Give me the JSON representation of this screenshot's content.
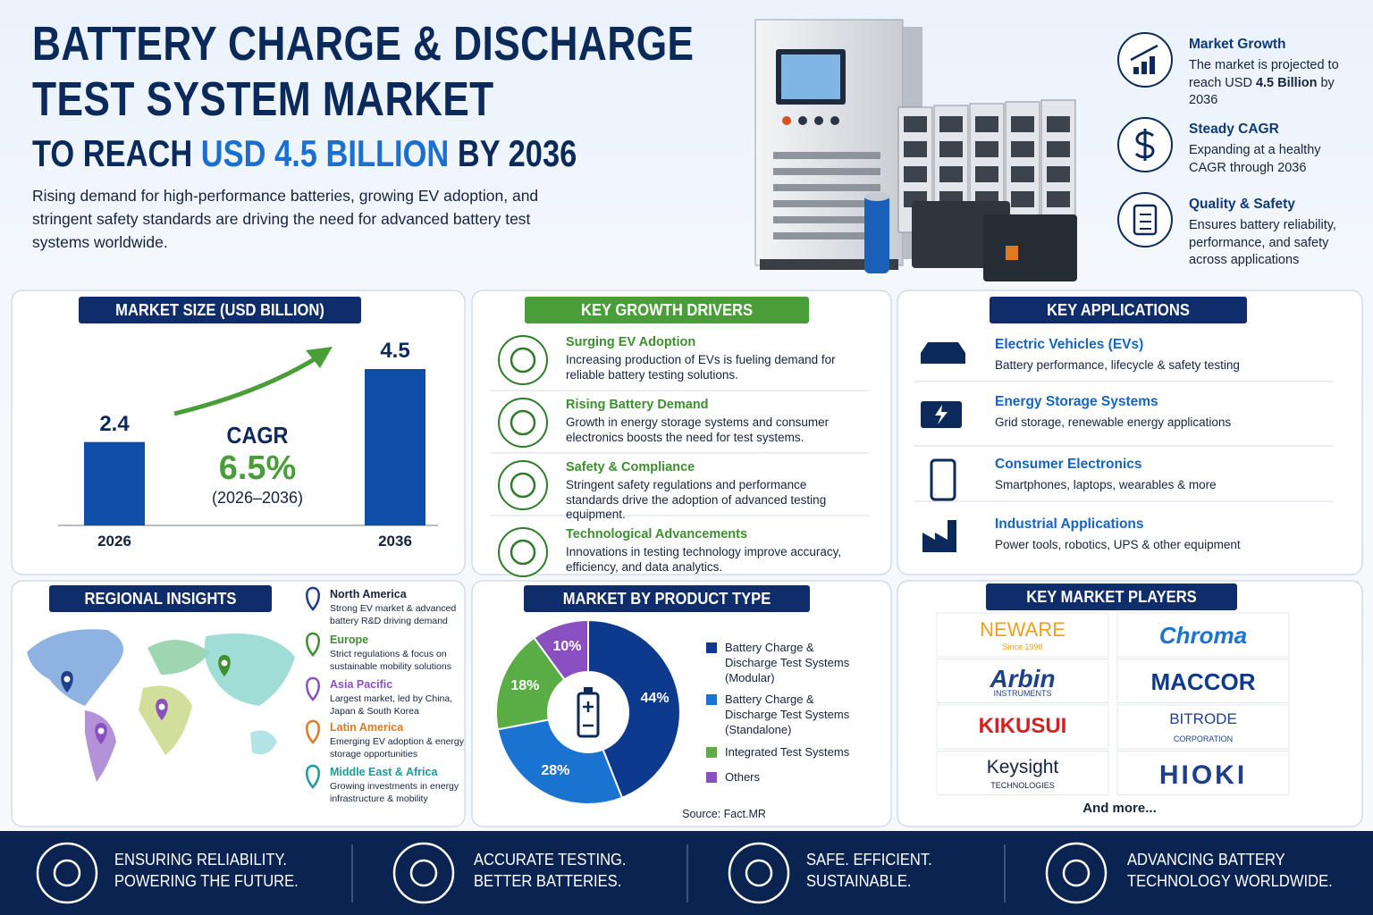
{
  "header": {
    "title_lines": [
      "BATTERY CHARGE & DISCHARGE",
      "TEST SYSTEM MARKET"
    ],
    "subtitle": {
      "before": "TO REACH",
      "highlight": "USD 4.5 BILLION",
      "after": "BY 2036"
    },
    "description": "Rising demand for high-performance batteries, growing EV adoption, and stringent safety standards are driving the need for advanced battery test systems worldwide."
  },
  "highlights": [
    {
      "title": "Market Growth",
      "text_before": "The market is projected to reach USD",
      "text_bold": "4.5 Billion",
      "text_after": "by 2036"
    },
    {
      "title": "Steady CAGR",
      "text": "Expanding at a healthy CAGR through 2036"
    },
    {
      "title": "Quality & Safety",
      "text": "Ensures battery reliability, performance, and safety across applications"
    }
  ],
  "chart_data": [
    {
      "type": "bar",
      "title": "MARKET SIZE (USD BILLION)",
      "categories": [
        "2026",
        "2036"
      ],
      "values": [
        2.4,
        4.5
      ],
      "color": "#0e4ea8",
      "annotations": {
        "cagr_label": "CAGR",
        "cagr_value": "6.5%",
        "cagr_period": "(2026–2036)"
      }
    },
    {
      "type": "pie",
      "title": "MARKET BY PRODUCT TYPE",
      "categories": [
        "Battery Charge & Discharge Test Systems (Modular)",
        "Battery Charge & Discharge Test Systems (Standalone)",
        "Integrated Test Systems",
        "Others"
      ],
      "values": [
        44,
        28,
        18,
        10
      ],
      "value_labels": [
        "44%",
        "28%",
        "18%",
        "10%"
      ],
      "colors": [
        "#0d3a8c",
        "#1a73d1",
        "#5aac44",
        "#8a4fc0"
      ],
      "source": "Source: Fact.MR"
    }
  ],
  "drivers": {
    "title": "KEY GROWTH DRIVERS",
    "items": [
      {
        "title": "Surging EV Adoption",
        "text": "Increasing production of EVs is fueling demand for reliable battery testing solutions."
      },
      {
        "title": "Rising Battery Demand",
        "text": "Growth in energy storage systems and consumer electronics boosts the need for test systems."
      },
      {
        "title": "Safety & Compliance",
        "text": "Stringent safety regulations and performance standards drive the adoption of advanced testing equipment."
      },
      {
        "title": "Technological Advancements",
        "text": "Innovations in testing technology improve accuracy, efficiency, and data analytics."
      }
    ]
  },
  "applications": {
    "title": "KEY APPLICATIONS",
    "items": [
      {
        "title": "Electric Vehicles (EVs)",
        "text": "Battery performance, lifecycle & safety testing"
      },
      {
        "title": "Energy Storage Systems",
        "text": "Grid storage, renewable energy applications"
      },
      {
        "title": "Consumer Electronics",
        "text": "Smartphones, laptops, wearables & more"
      },
      {
        "title": "Industrial Applications",
        "text": "Power tools, robotics, UPS & other equipment"
      }
    ]
  },
  "regions": {
    "title": "REGIONAL INSIGHTS",
    "items": [
      {
        "name": "North America",
        "text": "Strong EV market & advanced battery R&D driving demand"
      },
      {
        "name": "Europe",
        "text": "Strict regulations & focus on sustainable mobility solutions"
      },
      {
        "name": "Asia Pacific",
        "text": "Largest market, led by China, Japan & South Korea"
      },
      {
        "name": "Latin America",
        "text": "Emerging EV adoption & energy storage opportunities"
      },
      {
        "name": "Middle East & Africa",
        "text": "Growing investments in energy infrastructure & mobility"
      }
    ]
  },
  "players": {
    "title": "KEY MARKET PLAYERS",
    "logos": [
      {
        "name": "NEWARE",
        "tagline": "Since 1998"
      },
      {
        "name": "Chroma"
      },
      {
        "name": "Arbin",
        "tagline": "INSTRUMENTS"
      },
      {
        "name": "MACCOR"
      },
      {
        "name": "KIKUSUI"
      },
      {
        "name": "BITRODE",
        "tagline": "CORPORATION"
      },
      {
        "name": "Keysight",
        "tagline": "TECHNOLOGIES"
      },
      {
        "name": "HIOKI"
      }
    ],
    "more": "And more..."
  },
  "footer": [
    {
      "lines": [
        "ENSURING RELIABILITY.",
        "POWERING THE FUTURE."
      ]
    },
    {
      "lines": [
        "ACCURATE TESTING.",
        "BETTER BATTERIES."
      ]
    },
    {
      "lines": [
        "SAFE. EFFICIENT.",
        "SUSTAINABLE."
      ]
    },
    {
      "lines": [
        "ADVANCING BATTERY",
        "TECHNOLOGY WORLDWIDE."
      ]
    }
  ]
}
